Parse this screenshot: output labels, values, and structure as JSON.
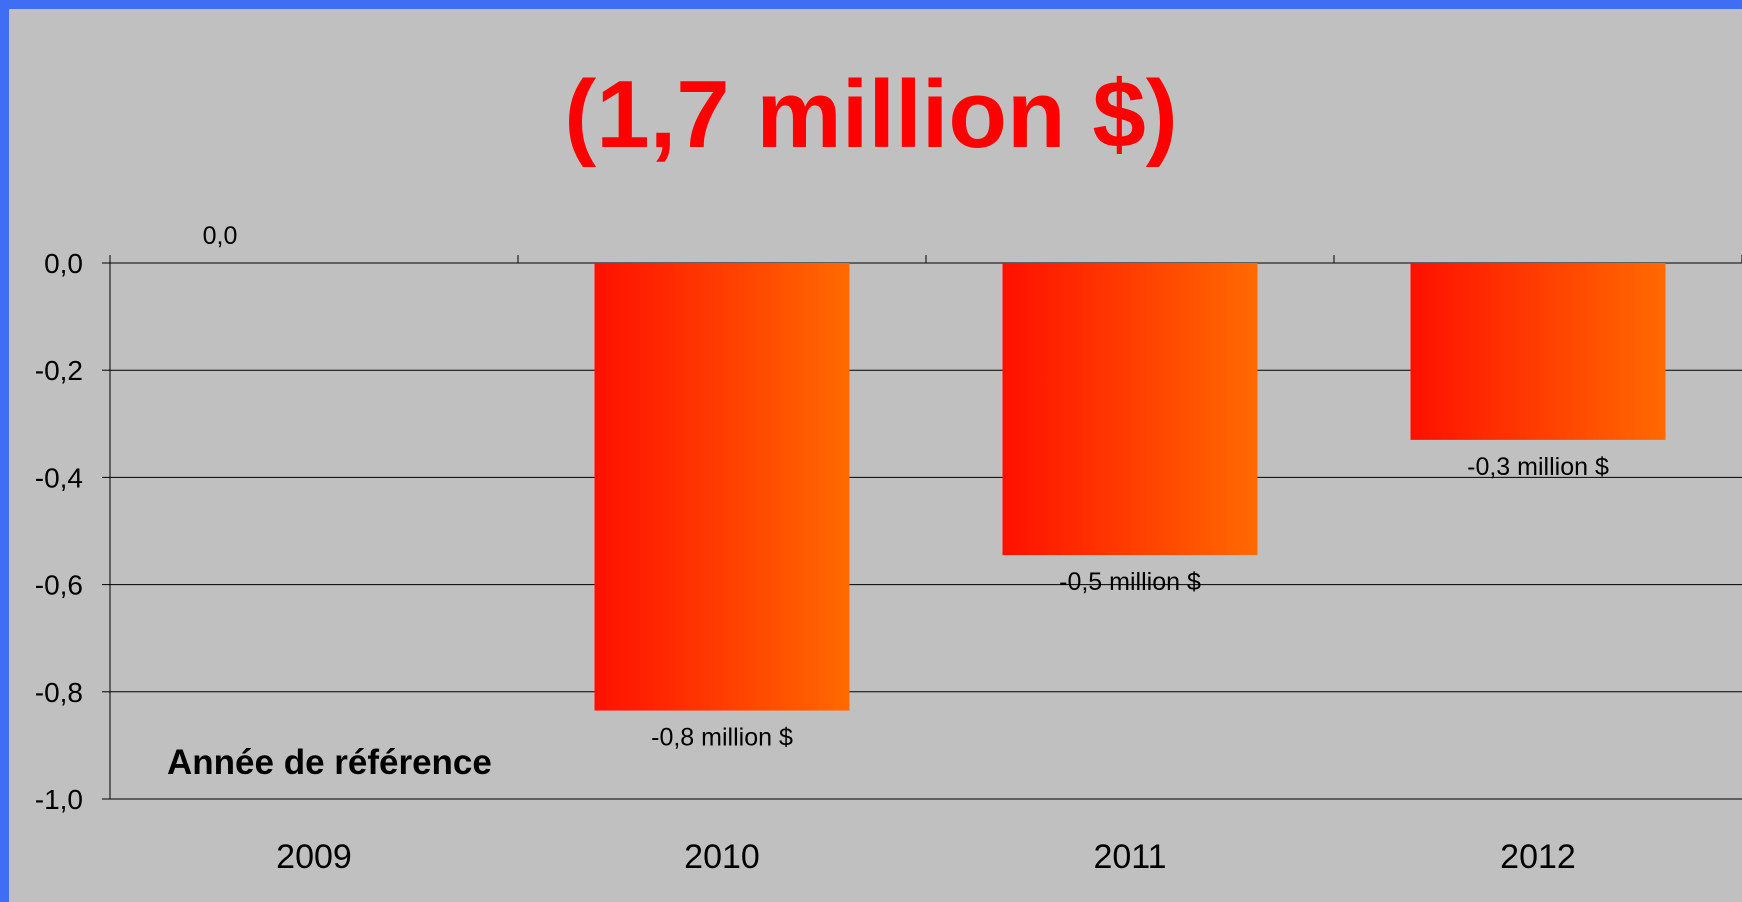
{
  "colors": {
    "background": "#c0c0c0",
    "frame": "#3f6ef5",
    "title": "#ff0000",
    "bar_gradient_start": "#ff1000",
    "bar_gradient_end": "#ff6a00"
  },
  "chart_data": {
    "type": "bar",
    "title": "(1,7 million $)",
    "categories": [
      "2009",
      "2010",
      "2011",
      "2012"
    ],
    "values": [
      0.0,
      -0.835,
      -0.545,
      -0.33
    ],
    "data_labels": [
      "0,0",
      "-0,8 million $",
      "-0,5 million $",
      "-0,3 million $"
    ],
    "ylim": [
      -1.0,
      0.0
    ],
    "yticks": [
      0.0,
      -0.2,
      -0.4,
      -0.6,
      -0.8,
      -1.0
    ],
    "ytick_labels": [
      "0,0",
      "-0,2",
      "-0,4",
      "-0,6",
      "-0,8",
      "-1,0"
    ],
    "grid": true,
    "annotation": "Année de référence",
    "xlabel": "",
    "ylabel": ""
  }
}
